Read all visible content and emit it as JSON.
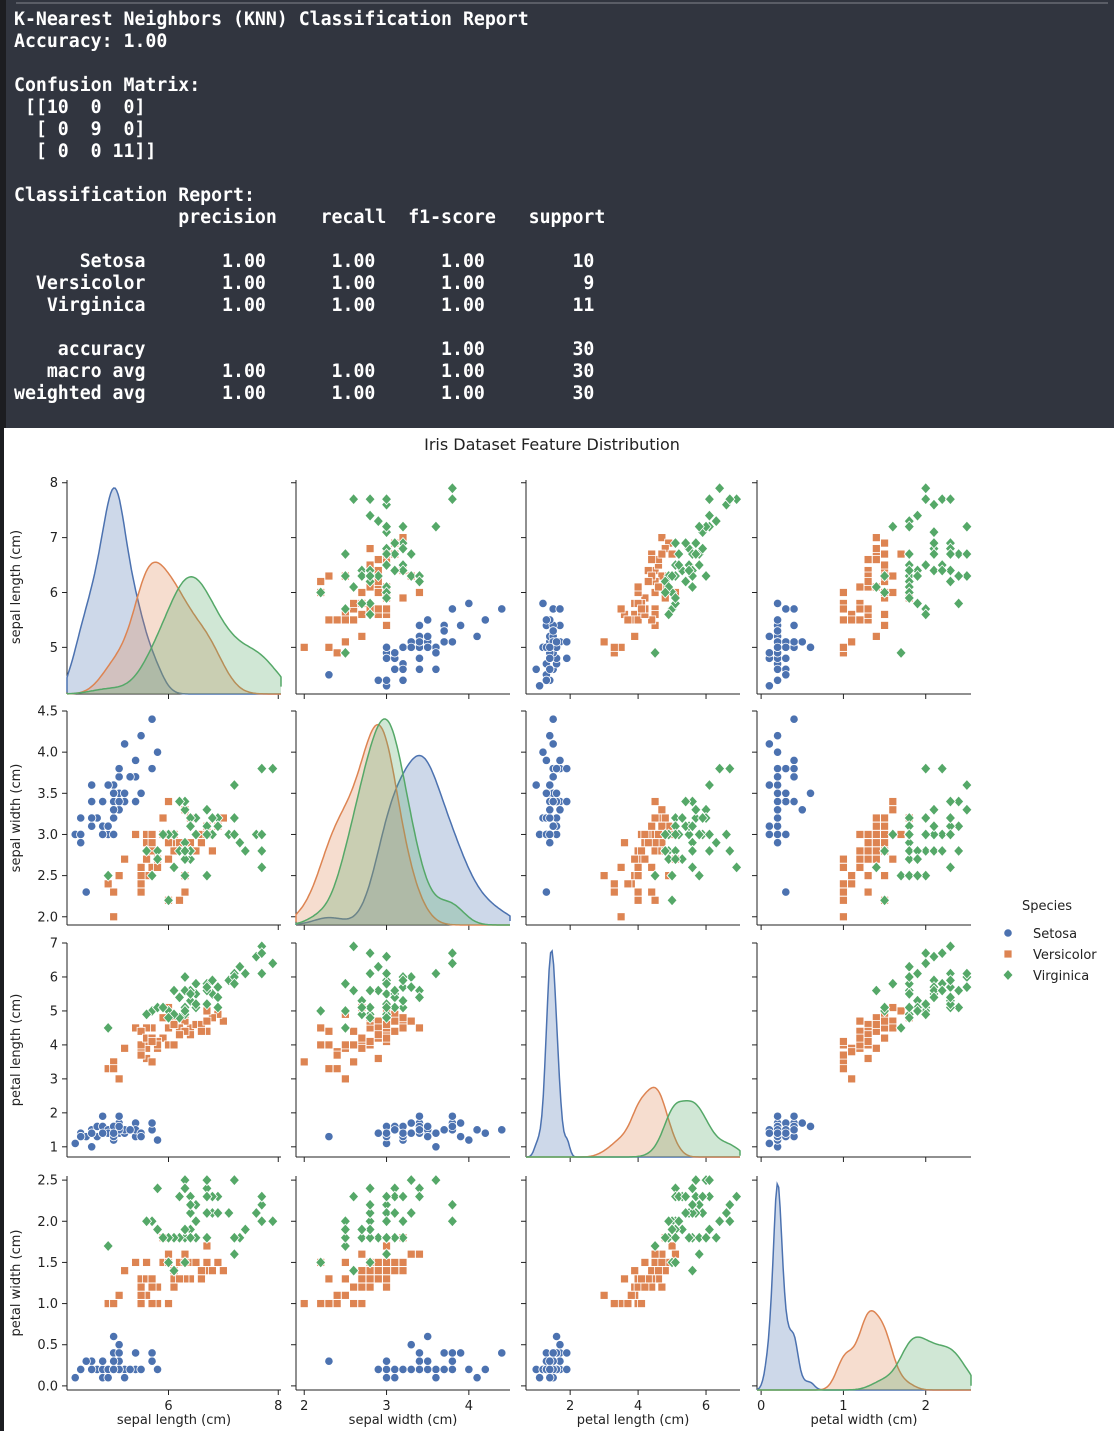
{
  "terminal": {
    "title": "K-Nearest Neighbors (KNN) Classification Report",
    "accuracy_line": "Accuracy: 1.00",
    "cm_label": "Confusion Matrix:",
    "cm_rows": [
      " [[10  0  0]",
      "  [ 0  9  0]",
      "  [ 0  0 11]]"
    ],
    "report_label": "Classification Report:",
    "header": "               precision    recall  f1-score   support",
    "rows": [
      "      Setosa       1.00      1.00      1.00        10",
      "  Versicolor       1.00      1.00      1.00         9",
      "   Virginica       1.00      1.00      1.00        11",
      "",
      "    accuracy                           1.00        30",
      "   macro avg       1.00      1.00      1.00        30",
      "weighted avg       1.00      1.00      1.00        30"
    ]
  },
  "chart_data": {
    "type": "scatter",
    "title": "Iris Dataset Feature Distribution",
    "variables": [
      "sepal length (cm)",
      "sepal width (cm)",
      "petal length (cm)",
      "petal width (cm)"
    ],
    "ranges": [
      [
        4.15,
        8.05
      ],
      [
        1.9,
        4.5
      ],
      [
        0.7,
        7.0
      ],
      [
        -0.05,
        2.55
      ]
    ],
    "ticks": [
      [
        4,
        6,
        8
      ],
      [
        2,
        3,
        4,
        5
      ],
      [
        0,
        2,
        4,
        6,
        8
      ],
      [
        0,
        1,
        2,
        3
      ]
    ],
    "yticks": [
      [
        5,
        6,
        7,
        8
      ],
      [
        2.0,
        2.5,
        3.0,
        3.5,
        4.0,
        4.5
      ],
      [
        1,
        2,
        3,
        4,
        5,
        6,
        7
      ],
      [
        0.0,
        0.5,
        1.0,
        1.5,
        2.0,
        2.5
      ]
    ],
    "diagonal": "kde",
    "legend": {
      "title": "Species",
      "placement": "right"
    },
    "series": [
      {
        "name": "Setosa",
        "color": "#4c72b0",
        "marker": "circle",
        "points": [
          [
            5.1,
            3.5,
            1.4,
            0.2
          ],
          [
            4.9,
            3.0,
            1.4,
            0.2
          ],
          [
            4.7,
            3.2,
            1.3,
            0.2
          ],
          [
            4.6,
            3.1,
            1.5,
            0.2
          ],
          [
            5.0,
            3.6,
            1.4,
            0.2
          ],
          [
            5.4,
            3.9,
            1.7,
            0.4
          ],
          [
            4.6,
            3.4,
            1.4,
            0.3
          ],
          [
            5.0,
            3.4,
            1.5,
            0.2
          ],
          [
            4.4,
            2.9,
            1.4,
            0.2
          ],
          [
            4.9,
            3.1,
            1.5,
            0.1
          ],
          [
            5.4,
            3.7,
            1.5,
            0.2
          ],
          [
            4.8,
            3.4,
            1.6,
            0.2
          ],
          [
            4.8,
            3.0,
            1.4,
            0.1
          ],
          [
            4.3,
            3.0,
            1.1,
            0.1
          ],
          [
            5.8,
            4.0,
            1.2,
            0.2
          ],
          [
            5.7,
            4.4,
            1.5,
            0.4
          ],
          [
            5.4,
            3.9,
            1.3,
            0.4
          ],
          [
            5.1,
            3.5,
            1.4,
            0.3
          ],
          [
            5.7,
            3.8,
            1.7,
            0.3
          ],
          [
            5.1,
            3.8,
            1.5,
            0.3
          ],
          [
            5.4,
            3.4,
            1.7,
            0.2
          ],
          [
            5.1,
            3.7,
            1.5,
            0.4
          ],
          [
            4.6,
            3.6,
            1.0,
            0.2
          ],
          [
            5.1,
            3.3,
            1.7,
            0.5
          ],
          [
            4.8,
            3.4,
            1.9,
            0.2
          ],
          [
            5.0,
            3.0,
            1.6,
            0.2
          ],
          [
            5.0,
            3.4,
            1.6,
            0.4
          ],
          [
            5.2,
            3.5,
            1.5,
            0.2
          ],
          [
            5.2,
            3.4,
            1.4,
            0.2
          ],
          [
            4.7,
            3.2,
            1.6,
            0.2
          ],
          [
            4.8,
            3.1,
            1.6,
            0.2
          ],
          [
            5.4,
            3.4,
            1.5,
            0.4
          ],
          [
            5.2,
            4.1,
            1.5,
            0.1
          ],
          [
            5.5,
            4.2,
            1.4,
            0.2
          ],
          [
            4.9,
            3.1,
            1.5,
            0.2
          ],
          [
            5.0,
            3.2,
            1.2,
            0.2
          ],
          [
            5.5,
            3.5,
            1.3,
            0.2
          ],
          [
            4.9,
            3.6,
            1.4,
            0.1
          ],
          [
            4.4,
            3.0,
            1.3,
            0.2
          ],
          [
            5.1,
            3.4,
            1.5,
            0.2
          ],
          [
            5.0,
            3.5,
            1.3,
            0.3
          ],
          [
            4.5,
            2.3,
            1.3,
            0.3
          ],
          [
            4.4,
            3.2,
            1.3,
            0.2
          ],
          [
            5.0,
            3.5,
            1.6,
            0.6
          ],
          [
            5.1,
            3.8,
            1.9,
            0.4
          ],
          [
            4.8,
            3.0,
            1.4,
            0.3
          ],
          [
            5.1,
            3.8,
            1.6,
            0.2
          ],
          [
            4.6,
            3.2,
            1.4,
            0.2
          ],
          [
            5.3,
            3.7,
            1.5,
            0.2
          ],
          [
            5.0,
            3.3,
            1.4,
            0.2
          ]
        ]
      },
      {
        "name": "Versicolor",
        "color": "#dd8452",
        "marker": "square",
        "points": [
          [
            7.0,
            3.2,
            4.7,
            1.4
          ],
          [
            6.4,
            3.2,
            4.5,
            1.5
          ],
          [
            6.9,
            3.1,
            4.9,
            1.5
          ],
          [
            5.5,
            2.3,
            4.0,
            1.3
          ],
          [
            6.5,
            2.8,
            4.6,
            1.5
          ],
          [
            5.7,
            2.8,
            4.5,
            1.3
          ],
          [
            6.3,
            3.3,
            4.7,
            1.6
          ],
          [
            4.9,
            2.4,
            3.3,
            1.0
          ],
          [
            6.6,
            2.9,
            4.6,
            1.3
          ],
          [
            5.2,
            2.7,
            3.9,
            1.4
          ],
          [
            5.0,
            2.0,
            3.5,
            1.0
          ],
          [
            5.9,
            3.0,
            4.2,
            1.5
          ],
          [
            6.0,
            2.2,
            4.0,
            1.0
          ],
          [
            6.1,
            2.9,
            4.7,
            1.4
          ],
          [
            5.6,
            2.9,
            3.6,
            1.3
          ],
          [
            6.7,
            3.1,
            4.4,
            1.4
          ],
          [
            5.6,
            3.0,
            4.5,
            1.5
          ],
          [
            5.8,
            2.7,
            4.1,
            1.0
          ],
          [
            6.2,
            2.2,
            4.5,
            1.5
          ],
          [
            5.6,
            2.5,
            3.9,
            1.1
          ],
          [
            5.9,
            3.2,
            4.8,
            1.8
          ],
          [
            6.1,
            2.8,
            4.0,
            1.3
          ],
          [
            6.3,
            2.5,
            4.9,
            1.5
          ],
          [
            6.1,
            2.8,
            4.7,
            1.2
          ],
          [
            6.4,
            2.9,
            4.3,
            1.3
          ],
          [
            6.6,
            3.0,
            4.4,
            1.4
          ],
          [
            6.8,
            2.8,
            4.8,
            1.4
          ],
          [
            6.7,
            3.0,
            5.0,
            1.7
          ],
          [
            6.0,
            2.9,
            4.5,
            1.5
          ],
          [
            5.7,
            2.6,
            3.5,
            1.0
          ],
          [
            5.5,
            2.4,
            3.8,
            1.1
          ],
          [
            5.5,
            2.4,
            3.7,
            1.0
          ],
          [
            5.8,
            2.7,
            3.9,
            1.2
          ],
          [
            6.0,
            2.7,
            5.1,
            1.6
          ],
          [
            5.4,
            3.0,
            4.5,
            1.5
          ],
          [
            6.0,
            3.4,
            4.5,
            1.6
          ],
          [
            6.7,
            3.1,
            4.7,
            1.5
          ],
          [
            6.3,
            2.3,
            4.4,
            1.3
          ],
          [
            5.6,
            3.0,
            4.1,
            1.3
          ],
          [
            5.5,
            2.5,
            4.0,
            1.3
          ],
          [
            5.5,
            2.6,
            4.4,
            1.2
          ],
          [
            6.1,
            3.0,
            4.6,
            1.4
          ],
          [
            5.8,
            2.6,
            4.0,
            1.2
          ],
          [
            5.0,
            2.3,
            3.3,
            1.0
          ],
          [
            5.6,
            2.7,
            4.2,
            1.3
          ],
          [
            5.7,
            3.0,
            4.2,
            1.2
          ],
          [
            5.7,
            2.9,
            4.2,
            1.3
          ],
          [
            6.2,
            2.9,
            4.3,
            1.3
          ],
          [
            5.1,
            2.5,
            3.0,
            1.1
          ],
          [
            5.7,
            2.8,
            4.1,
            1.3
          ]
        ]
      },
      {
        "name": "Virginica",
        "color": "#55a868",
        "marker": "diamond",
        "points": [
          [
            6.3,
            3.3,
            6.0,
            2.5
          ],
          [
            5.8,
            2.7,
            5.1,
            1.9
          ],
          [
            7.1,
            3.0,
            5.9,
            2.1
          ],
          [
            6.3,
            2.9,
            5.6,
            1.8
          ],
          [
            6.5,
            3.0,
            5.8,
            2.2
          ],
          [
            7.6,
            3.0,
            6.6,
            2.1
          ],
          [
            4.9,
            2.5,
            4.5,
            1.7
          ],
          [
            7.3,
            2.9,
            6.3,
            1.8
          ],
          [
            6.7,
            2.5,
            5.8,
            1.8
          ],
          [
            7.2,
            3.6,
            6.1,
            2.5
          ],
          [
            6.5,
            3.2,
            5.1,
            2.0
          ],
          [
            6.4,
            2.7,
            5.3,
            1.9
          ],
          [
            6.8,
            3.0,
            5.5,
            2.1
          ],
          [
            5.7,
            2.5,
            5.0,
            2.0
          ],
          [
            5.8,
            2.8,
            5.1,
            2.4
          ],
          [
            6.4,
            3.2,
            5.3,
            2.3
          ],
          [
            6.5,
            3.0,
            5.5,
            1.8
          ],
          [
            7.7,
            3.8,
            6.7,
            2.2
          ],
          [
            7.7,
            2.6,
            6.9,
            2.3
          ],
          [
            6.0,
            2.2,
            5.0,
            1.5
          ],
          [
            6.9,
            3.2,
            5.7,
            2.3
          ],
          [
            5.6,
            2.8,
            4.9,
            2.0
          ],
          [
            7.7,
            2.8,
            6.7,
            2.0
          ],
          [
            6.3,
            2.7,
            4.9,
            1.8
          ],
          [
            6.7,
            3.3,
            5.7,
            2.1
          ],
          [
            7.2,
            3.2,
            6.0,
            1.8
          ],
          [
            6.2,
            2.8,
            4.8,
            1.8
          ],
          [
            6.1,
            3.0,
            4.9,
            1.8
          ],
          [
            6.4,
            2.8,
            5.6,
            2.1
          ],
          [
            7.2,
            3.0,
            5.8,
            1.6
          ],
          [
            7.4,
            2.8,
            6.1,
            1.9
          ],
          [
            7.9,
            3.8,
            6.4,
            2.0
          ],
          [
            6.4,
            2.8,
            5.6,
            2.2
          ],
          [
            6.3,
            2.8,
            5.1,
            1.5
          ],
          [
            6.1,
            2.6,
            5.6,
            1.4
          ],
          [
            7.7,
            3.0,
            6.1,
            2.3
          ],
          [
            6.3,
            3.4,
            5.6,
            2.4
          ],
          [
            6.4,
            3.1,
            5.5,
            1.8
          ],
          [
            6.0,
            3.0,
            4.8,
            1.8
          ],
          [
            6.9,
            3.1,
            5.4,
            2.1
          ],
          [
            6.7,
            3.1,
            5.6,
            2.4
          ],
          [
            6.9,
            3.1,
            5.1,
            2.3
          ],
          [
            5.8,
            2.7,
            5.1,
            1.9
          ],
          [
            6.8,
            3.2,
            5.9,
            2.3
          ],
          [
            6.7,
            3.3,
            5.7,
            2.5
          ],
          [
            6.7,
            3.0,
            5.2,
            2.3
          ],
          [
            6.3,
            2.5,
            5.0,
            1.9
          ],
          [
            6.5,
            3.0,
            5.2,
            2.0
          ],
          [
            6.2,
            3.4,
            5.4,
            2.3
          ],
          [
            5.9,
            3.0,
            5.1,
            1.8
          ]
        ]
      }
    ]
  }
}
